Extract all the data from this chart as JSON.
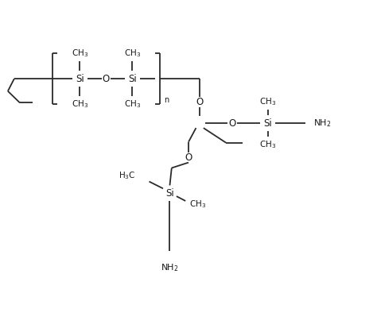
{
  "bg_color": "#ffffff",
  "line_color": "#2a2a2a",
  "text_color": "#1a1a1a",
  "line_width": 1.3,
  "fig_width": 4.74,
  "fig_height": 4.18,
  "dpi": 100,
  "xlim": [
    0,
    10
  ],
  "ylim": [
    0,
    8.5
  ]
}
